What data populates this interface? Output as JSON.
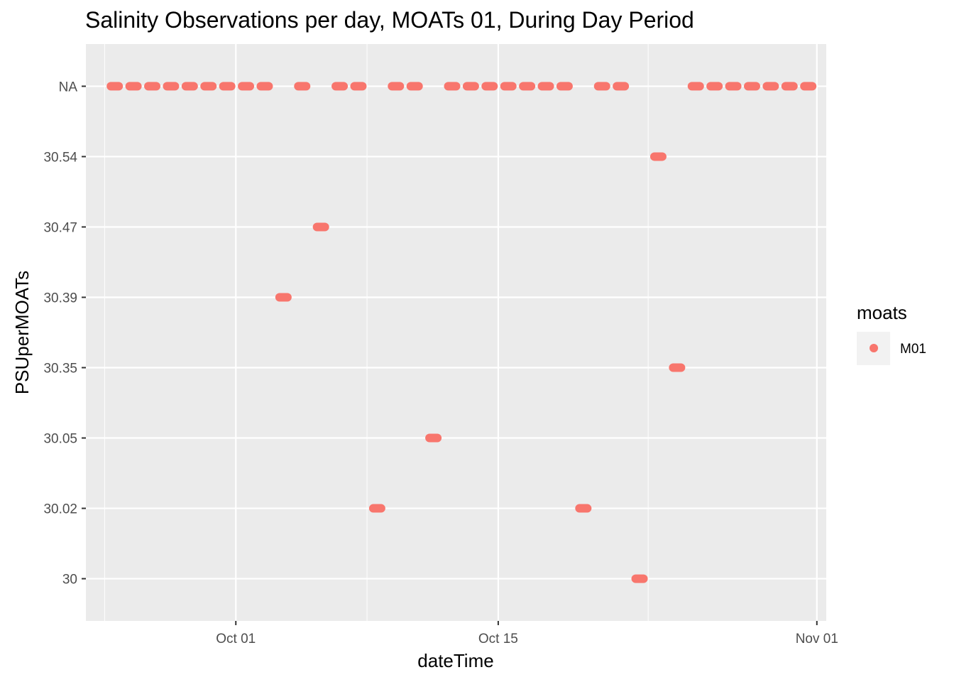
{
  "chart_data": {
    "type": "scatter",
    "title": "Salinity Observations per day, MOATs 01, During Day Period",
    "xlabel": "dateTime",
    "ylabel": "PSUperMOATs",
    "x_axis": {
      "kind": "date",
      "range": [
        "2019-09-23T00:00",
        "2019-11-01T12:00"
      ],
      "ticks": [
        {
          "value": "2019-10-01",
          "label": "Oct 01"
        },
        {
          "value": "2019-10-15",
          "label": "Oct 15"
        },
        {
          "value": "2019-11-01",
          "label": "Nov 01"
        }
      ],
      "minor_grid": [
        "2019-09-24",
        "2019-10-08",
        "2019-10-23"
      ]
    },
    "y_axis": {
      "kind": "categorical",
      "categories": [
        "30",
        "30.02",
        "30.05",
        "30.35",
        "30.39",
        "30.47",
        "30.54",
        "NA"
      ]
    },
    "grid": true,
    "legend": {
      "title": "moats",
      "position": "right",
      "entries": [
        {
          "label": "M01",
          "color": "#F8766D"
        }
      ]
    },
    "series": [
      {
        "name": "M01",
        "color": "#F8766D",
        "points": [
          {
            "start": "2019-09-24T08:00",
            "end": "2019-09-24T18:00",
            "y": "NA"
          },
          {
            "start": "2019-09-25T08:00",
            "end": "2019-09-25T18:00",
            "y": "NA"
          },
          {
            "start": "2019-09-26T08:00",
            "end": "2019-09-26T18:00",
            "y": "NA"
          },
          {
            "start": "2019-09-27T08:00",
            "end": "2019-09-27T18:00",
            "y": "NA"
          },
          {
            "start": "2019-09-28T08:00",
            "end": "2019-09-28T18:00",
            "y": "NA"
          },
          {
            "start": "2019-09-29T08:00",
            "end": "2019-09-29T18:00",
            "y": "NA"
          },
          {
            "start": "2019-09-30T08:00",
            "end": "2019-09-30T18:00",
            "y": "NA"
          },
          {
            "start": "2019-10-01T08:00",
            "end": "2019-10-01T18:00",
            "y": "NA"
          },
          {
            "start": "2019-10-02T08:00",
            "end": "2019-10-02T18:00",
            "y": "NA"
          },
          {
            "start": "2019-10-03T08:00",
            "end": "2019-10-03T18:00",
            "y": "30.39"
          },
          {
            "start": "2019-10-04T08:00",
            "end": "2019-10-04T18:00",
            "y": "NA"
          },
          {
            "start": "2019-10-05T08:00",
            "end": "2019-10-05T18:00",
            "y": "30.47"
          },
          {
            "start": "2019-10-06T08:00",
            "end": "2019-10-06T18:00",
            "y": "NA"
          },
          {
            "start": "2019-10-07T08:00",
            "end": "2019-10-07T18:00",
            "y": "NA"
          },
          {
            "start": "2019-10-08T08:00",
            "end": "2019-10-08T18:00",
            "y": "30.02"
          },
          {
            "start": "2019-10-09T08:00",
            "end": "2019-10-09T18:00",
            "y": "NA"
          },
          {
            "start": "2019-10-10T08:00",
            "end": "2019-10-10T18:00",
            "y": "NA"
          },
          {
            "start": "2019-10-11T08:00",
            "end": "2019-10-11T18:00",
            "y": "30.05"
          },
          {
            "start": "2019-10-12T08:00",
            "end": "2019-10-12T18:00",
            "y": "NA"
          },
          {
            "start": "2019-10-13T08:00",
            "end": "2019-10-13T18:00",
            "y": "NA"
          },
          {
            "start": "2019-10-14T08:00",
            "end": "2019-10-14T18:00",
            "y": "NA"
          },
          {
            "start": "2019-10-15T08:00",
            "end": "2019-10-15T18:00",
            "y": "NA"
          },
          {
            "start": "2019-10-16T08:00",
            "end": "2019-10-16T18:00",
            "y": "NA"
          },
          {
            "start": "2019-10-17T08:00",
            "end": "2019-10-17T18:00",
            "y": "NA"
          },
          {
            "start": "2019-10-18T08:00",
            "end": "2019-10-18T18:00",
            "y": "NA"
          },
          {
            "start": "2019-10-19T08:00",
            "end": "2019-10-19T18:00",
            "y": "30.02"
          },
          {
            "start": "2019-10-20T08:00",
            "end": "2019-10-20T18:00",
            "y": "NA"
          },
          {
            "start": "2019-10-21T08:00",
            "end": "2019-10-21T18:00",
            "y": "NA"
          },
          {
            "start": "2019-10-22T08:00",
            "end": "2019-10-22T18:00",
            "y": "30"
          },
          {
            "start": "2019-10-23T08:00",
            "end": "2019-10-23T18:00",
            "y": "30.54"
          },
          {
            "start": "2019-10-24T08:00",
            "end": "2019-10-24T18:00",
            "y": "30.35"
          },
          {
            "start": "2019-10-25T08:00",
            "end": "2019-10-25T18:00",
            "y": "NA"
          },
          {
            "start": "2019-10-26T08:00",
            "end": "2019-10-26T18:00",
            "y": "NA"
          },
          {
            "start": "2019-10-27T08:00",
            "end": "2019-10-27T18:00",
            "y": "NA"
          },
          {
            "start": "2019-10-28T08:00",
            "end": "2019-10-28T18:00",
            "y": "NA"
          },
          {
            "start": "2019-10-29T08:00",
            "end": "2019-10-29T18:00",
            "y": "NA"
          },
          {
            "start": "2019-10-30T08:00",
            "end": "2019-10-30T18:00",
            "y": "NA"
          },
          {
            "start": "2019-10-31T08:00",
            "end": "2019-10-31T18:00",
            "y": "NA"
          }
        ]
      }
    ]
  }
}
